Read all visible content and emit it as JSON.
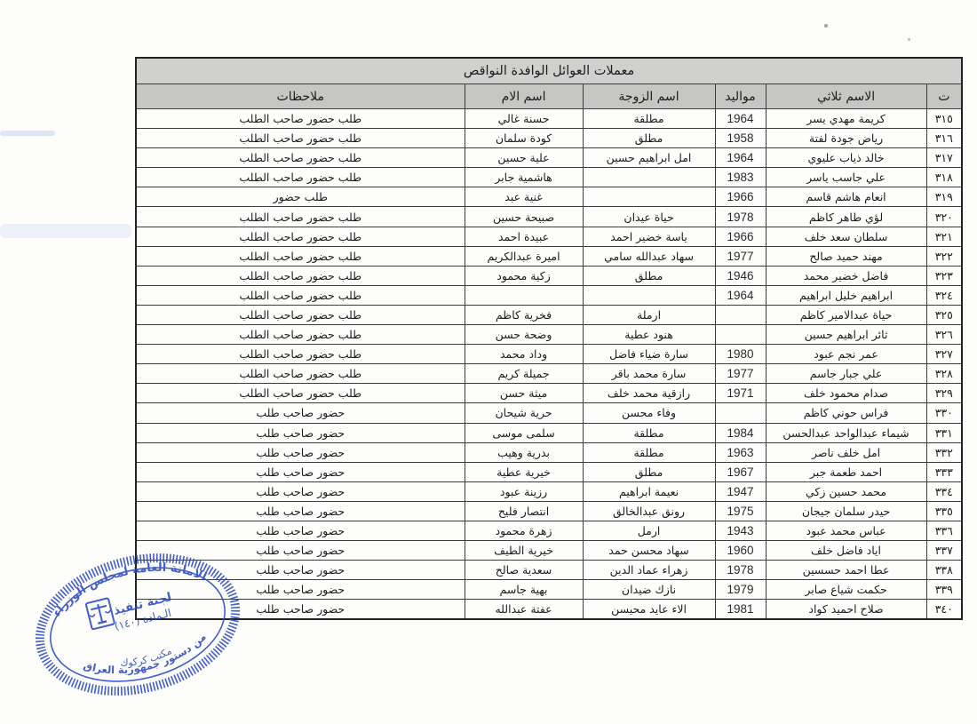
{
  "table": {
    "title": "معملات العوائل الوافدة النواقص",
    "headers": [
      "ت",
      "الاسم ثلاثي",
      "مواليد",
      "اسم الزوجة",
      "اسم الام",
      "ملاحظات"
    ],
    "rows": [
      {
        "no": "٣١٥",
        "name": "كريمة مهدي يسر",
        "birth": "1964",
        "wife": "مطلقة",
        "mother": "حسنة غالي",
        "notes": "طلب حضور صاحب الطلب"
      },
      {
        "no": "٣١٦",
        "name": "رياض جودة لفتة",
        "birth": "1958",
        "wife": "مطلق",
        "mother": "كودة سلمان",
        "notes": "طلب حضور صاحب الطلب"
      },
      {
        "no": "٣١٧",
        "name": "خالد ذياب عليوي",
        "birth": "1964",
        "wife": "امل ابراهيم حسين",
        "mother": "علية حسين",
        "notes": "طلب حضور صاحب الطلب"
      },
      {
        "no": "٣١٨",
        "name": "علي جاسب ياسر",
        "birth": "1983",
        "wife": "",
        "mother": "هاشمية جابر",
        "notes": "طلب حضور صاحب الطلب"
      },
      {
        "no": "٣١٩",
        "name": "انعام هاشم قاسم",
        "birth": "1966",
        "wife": "",
        "mother": "غنية عبد",
        "notes": "طلب حضور"
      },
      {
        "no": "٣٢٠",
        "name": "لؤي طاهر كاظم",
        "birth": "1978",
        "wife": "حياة عيدان",
        "mother": "صبيحة حسين",
        "notes": "طلب حضور صاحب الطلب"
      },
      {
        "no": "٣٢١",
        "name": "سلطان سعد خلف",
        "birth": "1966",
        "wife": "ياسة خضير احمد",
        "mother": "عبيدة احمد",
        "notes": "طلب حضور صاحب الطلب"
      },
      {
        "no": "٣٢٢",
        "name": "مهند حميد صالح",
        "birth": "1977",
        "wife": "سهاد عبدالله سامي",
        "mother": "اميرة عبدالكريم",
        "notes": "طلب حضور صاحب الطلب"
      },
      {
        "no": "٣٢٣",
        "name": "فاضل خضير محمد",
        "birth": "1946",
        "wife": "مطلق",
        "mother": "زكية محمود",
        "notes": "طلب حضور صاحب الطلب"
      },
      {
        "no": "٣٢٤",
        "name": "ابراهيم خليل ابراهيم",
        "birth": "1964",
        "wife": "",
        "mother": "",
        "notes": "طلب حضور صاحب الطلب"
      },
      {
        "no": "٣٢٥",
        "name": "حياة عبدالامير كاظم",
        "birth": "",
        "wife": "ارملة",
        "mother": "فخرية كاظم",
        "notes": "طلب حضور صاحب الطلب"
      },
      {
        "no": "٣٢٦",
        "name": "ثائر ابراهيم حسين",
        "birth": "",
        "wife": "هنود عطية",
        "mother": "وضحة حسن",
        "notes": "طلب حضور صاحب الطلب"
      },
      {
        "no": "٣٢٧",
        "name": "عمر نجم عبود",
        "birth": "1980",
        "wife": "سارة ضياء فاضل",
        "mother": "وداد محمد",
        "notes": "طلب حضور صاحب الطلب"
      },
      {
        "no": "٣٢٨",
        "name": "علي جبار جاسم",
        "birth": "1977",
        "wife": "سارة محمد باقر",
        "mother": "جميلة كريم",
        "notes": "طلب حضور صاحب الطلب"
      },
      {
        "no": "٣٢٩",
        "name": "صدام محمود خلف",
        "birth": "1971",
        "wife": "رازقية محمد خلف",
        "mother": "ميثة حسن",
        "notes": "طلب حضور صاحب الطلب"
      },
      {
        "no": "٣٣٠",
        "name": "فراس حوني كاظم",
        "birth": "",
        "wife": "وفاء محسن",
        "mother": "حرية شيحان",
        "notes": "حضور صاحب طلب"
      },
      {
        "no": "٣٣١",
        "name": "شيماء عبدالواحد عبدالحسن",
        "birth": "1984",
        "wife": "مطلقة",
        "mother": "سلمى موسى",
        "notes": "حضور صاحب طلب"
      },
      {
        "no": "٣٣٢",
        "name": "امل خلف ناصر",
        "birth": "1963",
        "wife": "مطلقة",
        "mother": "بدرية وهيب",
        "notes": "حضور صاحب طلب"
      },
      {
        "no": "٣٣٣",
        "name": "احمد طعمة جبر",
        "birth": "1967",
        "wife": "مطلق",
        "mother": "خيرية عطية",
        "notes": "حضور صاحب طلب"
      },
      {
        "no": "٣٣٤",
        "name": "محمد حسين زكي",
        "birth": "1947",
        "wife": "نعيمة ابراهيم",
        "mother": "رزينة عبود",
        "notes": "حضور صاحب طلب"
      },
      {
        "no": "٣٣٥",
        "name": "حيدر سلمان جيجان",
        "birth": "1975",
        "wife": "رونق عبدالخالق",
        "mother": "انتصار فليح",
        "notes": "حضور صاحب طلب"
      },
      {
        "no": "٣٣٦",
        "name": "عباس محمد عبود",
        "birth": "1943",
        "wife": "ارمل",
        "mother": "زهرة محمود",
        "notes": "حضور صاحب طلب"
      },
      {
        "no": "٣٣٧",
        "name": "اياد فاضل خلف",
        "birth": "1960",
        "wife": "سهاد محسن حمد",
        "mother": "خيرية الطيف",
        "notes": "حضور صاحب طلب"
      },
      {
        "no": "٣٣٨",
        "name": "عطا احمد حسسين",
        "birth": "1978",
        "wife": "زهراء عماد الدين",
        "mother": "سعدية صالح",
        "notes": "حضور صاحب طلب"
      },
      {
        "no": "٣٣٩",
        "name": "حكمت شياع صابر",
        "birth": "1979",
        "wife": "نازك ضيدان",
        "mother": "بهية جاسم",
        "notes": "حضور صاحب طلب"
      },
      {
        "no": "٣٤٠",
        "name": "صلاح احميد كواد",
        "birth": "1981",
        "wife": "الاء عايد محيسن",
        "mother": "عفتة عبدالله",
        "notes": "حضور صاحب طلب"
      }
    ]
  },
  "stamp": {
    "color": "#2b49c0",
    "arc_top": "الامانة العامة لمجلس الوزراء",
    "line1": "لجنة تنفيذ",
    "line2": "الـمادة (١٤٠)",
    "arc_bottom": "من دستور جمهورية العراق",
    "arc_inner": "مكتب كركوك"
  }
}
